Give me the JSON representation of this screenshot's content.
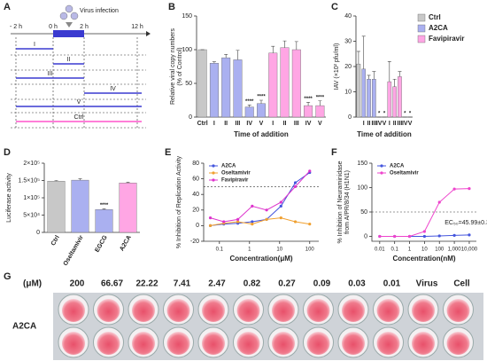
{
  "chart_data": [
    {
      "panel_label": "B",
      "type": "bar",
      "ylabel": [
        "Relative viral copy numbers",
        "(% of Control)"
      ],
      "xlabel": "Time of addition",
      "categories": [
        "Ctrl",
        "I",
        "II",
        "III",
        "IV",
        "V",
        "I",
        "II",
        "III",
        "IV",
        "V"
      ],
      "values": [
        100,
        80,
        88,
        85,
        15,
        20,
        95,
        103,
        100,
        17,
        17
      ],
      "errors": [
        0,
        2,
        5,
        14,
        3,
        5,
        10,
        10,
        12,
        5,
        7
      ],
      "colors": [
        "#c8c8c8",
        "#aab0f0",
        "#aab0f0",
        "#aab0f0",
        "#aab0f0",
        "#aab0f0",
        "#ffa6e4",
        "#ffa6e4",
        "#ffa6e4",
        "#ffa6e4",
        "#ffa6e4"
      ],
      "stars": [
        null,
        null,
        null,
        null,
        "****",
        "****",
        null,
        null,
        null,
        "****",
        "****"
      ],
      "ylim": [
        0,
        150
      ],
      "yticks": [
        0,
        50,
        100,
        150
      ]
    },
    {
      "panel_label": "C",
      "type": "bar",
      "ylabel": [
        "IAV (×10² pfu/ml)"
      ],
      "xlabel": "Time of addition",
      "categories": [
        null,
        "I",
        "II",
        "III",
        "IV",
        "V",
        "I",
        "II",
        "III",
        "IV",
        "V"
      ],
      "values": [
        21,
        19,
        15,
        15,
        0,
        0,
        14,
        12,
        16,
        0,
        0
      ],
      "errors": [
        5,
        13,
        1.5,
        3,
        0,
        0,
        8,
        3,
        2,
        0,
        0
      ],
      "colors": [
        "#c8c8c8",
        "#aab0f0",
        "#aab0f0",
        "#aab0f0",
        "#aab0f0",
        "#aab0f0",
        "#ffa6e4",
        "#ffa6e4",
        "#ffa6e4",
        "#ffa6e4",
        "#ffa6e4"
      ],
      "stars": [
        null,
        null,
        null,
        null,
        "*",
        "*",
        null,
        null,
        null,
        "*",
        "*"
      ],
      "ylim": [
        0,
        40
      ],
      "yticks": [
        0,
        10,
        20,
        30,
        40
      ],
      "legend": {
        "names": [
          "Ctrl",
          "A2CA",
          "Favipiravir"
        ],
        "colors": [
          "#c8c8c8",
          "#aab0f0",
          "#ffa6e4"
        ]
      }
    },
    {
      "panel_label": "D",
      "type": "bar",
      "ylabel": [
        "Luciferase activity"
      ],
      "categories": [
        "Ctrl",
        "Oseltamivir",
        "EGCG",
        "A2CA"
      ],
      "values": [
        148000,
        151000,
        66000,
        143000
      ],
      "errors": [
        2000,
        4000,
        2000,
        2000
      ],
      "colors": [
        "#c8c8c8",
        "#aab0f0",
        "#aab0f0",
        "#ffa6e4"
      ],
      "stars": [
        null,
        null,
        "****",
        null
      ],
      "ylim": [
        0,
        200000
      ],
      "yticks": [
        0,
        {
          "value": 50000,
          "label": "5×10⁴"
        },
        {
          "value": 100000,
          "label": "1×10⁵"
        },
        {
          "value": 150000,
          "label": "1.5×10⁵"
        },
        {
          "value": 200000,
          "label": "2×10⁵"
        }
      ]
    },
    {
      "panel_label": "E",
      "type": "line",
      "log_x": true,
      "ylabel": [
        "% Inhibition of Replication Activity"
      ],
      "xlabel": "Concentration(μM)",
      "x": [
        0.05,
        0.14,
        0.41,
        1.23,
        3.7,
        11.1,
        33.3,
        100
      ],
      "series": [
        {
          "name": "A2CA",
          "color": "#4455dd",
          "values": [
            0,
            2,
            3,
            5,
            8,
            25,
            55,
            68
          ]
        },
        {
          "name": "Oseltamivir",
          "color": "#f0a030",
          "values": [
            0,
            3,
            5,
            2,
            8,
            10,
            5,
            2
          ]
        },
        {
          "name": "Favipiravir",
          "color": "#dd33cc",
          "values": [
            10,
            5,
            8,
            25,
            20,
            30,
            50,
            70
          ]
        }
      ],
      "xlim": [
        0.03,
        200
      ],
      "xticks": [
        0.1,
        1,
        10,
        100
      ],
      "ylim": [
        -20,
        80
      ],
      "yticks": [
        -20,
        0,
        20,
        40,
        60,
        80
      ],
      "ref_line": 50
    },
    {
      "panel_label": "F",
      "type": "line",
      "log_x": true,
      "ylabel": [
        "% Inhibition of Neuraminidase",
        "from A/PR/8/34 (H1N1)"
      ],
      "xlabel": "Concentration(nM)",
      "x": [
        0.01,
        0.1,
        1,
        10,
        100,
        1000,
        10000
      ],
      "series": [
        {
          "name": "A2CA",
          "color": "#4455dd",
          "values": [
            0,
            0,
            0,
            0,
            1,
            2,
            3
          ]
        },
        {
          "name": "Oseltamivir",
          "color": "#ee44cc",
          "values": [
            0,
            0,
            0,
            10,
            70,
            97,
            98
          ]
        }
      ],
      "xlim": [
        0.003,
        30000
      ],
      "xticks": [
        0.01,
        0.1,
        1,
        10,
        100,
        {
          "value": 1000,
          "label": "1,000"
        },
        {
          "value": 10000,
          "label": "10,000"
        }
      ],
      "ylim": [
        -10,
        150
      ],
      "yticks": [
        0,
        50,
        100,
        150
      ],
      "ref_line": 50,
      "annotation": "EC₅₀=45.99±0.35"
    }
  ],
  "diagram_a": {
    "panel_label": "A",
    "event": "Virus infection",
    "times": [
      "- 2 h",
      "0 h",
      "2 h",
      "12 h"
    ],
    "rows": [
      "I",
      "II",
      "III",
      "IV",
      "V",
      "Ctrl"
    ]
  },
  "plate_g": {
    "panel_label": "G",
    "unit": "(μM)",
    "columns": [
      "200",
      "66.67",
      "22.22",
      "7.41",
      "2.47",
      "0.82",
      "0.27",
      "0.09",
      "0.03",
      "0.01",
      "Virus",
      "Cell"
    ],
    "row_label": "A2CA"
  }
}
